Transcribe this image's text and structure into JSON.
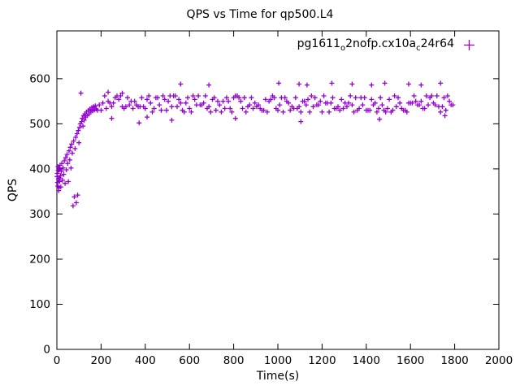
{
  "chart_data": {
    "type": "scatter",
    "title": "QPS vs Time for qp500.L4",
    "xlabel": "Time(s)",
    "ylabel": "QPS",
    "xlim": [
      0,
      2000
    ],
    "ylim": [
      0,
      706
    ],
    "x_ticks": [
      0,
      200,
      400,
      600,
      800,
      1000,
      1200,
      1400,
      1600,
      1800,
      2000
    ],
    "y_ticks": [
      0,
      100,
      200,
      300,
      400,
      500,
      600
    ],
    "grid": false,
    "legend_position": "top-right-inside",
    "colors": {
      "text": "#000000",
      "background": "#ffffff",
      "border": "#000000"
    },
    "series": [
      {
        "name": "pg1611_o2nofp.cx10a_c24r64",
        "name_parts": {
          "prefix": "pg1611",
          "sub1": "o",
          "mid": "2nofp.cx10a",
          "sub2": "c",
          "suffix": "24r64"
        },
        "marker": "plus",
        "color": "#9400d3",
        "points": [
          [
            1,
            383
          ],
          [
            2,
            390
          ],
          [
            3,
            370
          ],
          [
            4,
            362
          ],
          [
            5,
            405
          ],
          [
            6,
            397
          ],
          [
            7,
            378
          ],
          [
            8,
            352
          ],
          [
            9,
            358
          ],
          [
            10,
            398
          ],
          [
            11,
            402
          ],
          [
            12,
            372
          ],
          [
            13,
            380
          ],
          [
            14,
            408
          ],
          [
            16,
            385
          ],
          [
            18,
            360
          ],
          [
            20,
            395
          ],
          [
            22,
            412
          ],
          [
            25,
            375
          ],
          [
            28,
            402
          ],
          [
            31,
            388
          ],
          [
            34,
            418
          ],
          [
            37,
            368
          ],
          [
            40,
            425
          ],
          [
            43,
            398
          ],
          [
            46,
            432
          ],
          [
            49,
            412
          ],
          [
            52,
            372
          ],
          [
            55,
            440
          ],
          [
            58,
            420
          ],
          [
            61,
            448
          ],
          [
            64,
            402
          ],
          [
            67,
            455
          ],
          [
            70,
            435
          ],
          [
            73,
            318
          ],
          [
            76,
            462
          ],
          [
            79,
            338
          ],
          [
            82,
            445
          ],
          [
            85,
            470
          ],
          [
            88,
            325
          ],
          [
            91,
            478
          ],
          [
            94,
            342
          ],
          [
            97,
            485
          ],
          [
            100,
            458
          ],
          [
            103,
            492
          ],
          [
            106,
            500
          ],
          [
            109,
            568
          ],
          [
            112,
            505
          ],
          [
            115,
            512
          ],
          [
            118,
            495
          ],
          [
            121,
            518
          ],
          [
            124,
            508
          ],
          [
            127,
            522
          ],
          [
            130,
            515
          ],
          [
            134,
            526
          ],
          [
            138,
            518
          ],
          [
            142,
            530
          ],
          [
            146,
            522
          ],
          [
            150,
            533
          ],
          [
            154,
            526
          ],
          [
            158,
            536
          ],
          [
            162,
            529
          ],
          [
            166,
            538
          ],
          [
            170,
            531
          ],
          [
            174,
            540
          ],
          [
            178,
            533
          ],
          [
            184,
            530
          ],
          [
            192,
            542
          ],
          [
            200,
            530
          ],
          [
            208,
            546
          ],
          [
            216,
            562
          ],
          [
            224,
            534
          ],
          [
            232,
            550
          ],
          [
            240,
            546
          ],
          [
            248,
            538
          ],
          [
            256,
            546
          ],
          [
            264,
            558
          ],
          [
            272,
            562
          ],
          [
            280,
            554
          ],
          [
            288,
            562
          ],
          [
            296,
            538
          ],
          [
            304,
            534
          ],
          [
            312,
            538
          ],
          [
            320,
            558
          ],
          [
            328,
            542
          ],
          [
            336,
            550
          ],
          [
            344,
            534
          ],
          [
            352,
            550
          ],
          [
            360,
            542
          ],
          [
            368,
            538
          ],
          [
            376,
            538
          ],
          [
            384,
            558
          ],
          [
            392,
            538
          ],
          [
            400,
            534
          ],
          [
            408,
            554
          ],
          [
            416,
            562
          ],
          [
            424,
            546
          ],
          [
            432,
            526
          ],
          [
            440,
            534
          ],
          [
            448,
            558
          ],
          [
            456,
            558
          ],
          [
            464,
            542
          ],
          [
            472,
            530
          ],
          [
            480,
            562
          ],
          [
            488,
            554
          ],
          [
            496,
            530
          ],
          [
            504,
            550
          ],
          [
            512,
            562
          ],
          [
            520,
            538
          ],
          [
            528,
            562
          ],
          [
            536,
            562
          ],
          [
            544,
            538
          ],
          [
            552,
            554
          ],
          [
            560,
            546
          ],
          [
            568,
            530
          ],
          [
            576,
            526
          ],
          [
            584,
            546
          ],
          [
            592,
            558
          ],
          [
            600,
            534
          ],
          [
            608,
            526
          ],
          [
            616,
            562
          ],
          [
            624,
            554
          ],
          [
            632,
            542
          ],
          [
            640,
            562
          ],
          [
            648,
            542
          ],
          [
            656,
            542
          ],
          [
            664,
            546
          ],
          [
            672,
            562
          ],
          [
            680,
            534
          ],
          [
            688,
            538
          ],
          [
            696,
            526
          ],
          [
            704,
            554
          ],
          [
            712,
            558
          ],
          [
            720,
            530
          ],
          [
            728,
            550
          ],
          [
            736,
            542
          ],
          [
            744,
            526
          ],
          [
            752,
            550
          ],
          [
            760,
            534
          ],
          [
            768,
            558
          ],
          [
            776,
            550
          ],
          [
            784,
            534
          ],
          [
            792,
            526
          ],
          [
            800,
            558
          ],
          [
            808,
            562
          ],
          [
            816,
            562
          ],
          [
            824,
            558
          ],
          [
            832,
            550
          ],
          [
            840,
            534
          ],
          [
            848,
            558
          ],
          [
            856,
            526
          ],
          [
            864,
            538
          ],
          [
            872,
            542
          ],
          [
            880,
            558
          ],
          [
            888,
            534
          ],
          [
            896,
            546
          ],
          [
            904,
            538
          ],
          [
            912,
            542
          ],
          [
            920,
            534
          ],
          [
            928,
            530
          ],
          [
            936,
            530
          ],
          [
            944,
            554
          ],
          [
            952,
            526
          ],
          [
            960,
            550
          ],
          [
            968,
            554
          ],
          [
            976,
            562
          ],
          [
            984,
            558
          ],
          [
            992,
            534
          ],
          [
            1000,
            530
          ],
          [
            1008,
            542
          ],
          [
            1016,
            558
          ],
          [
            1024,
            526
          ],
          [
            1032,
            558
          ],
          [
            1040,
            550
          ],
          [
            1048,
            546
          ],
          [
            1056,
            530
          ],
          [
            1064,
            538
          ],
          [
            1072,
            534
          ],
          [
            1080,
            558
          ],
          [
            1088,
            534
          ],
          [
            1096,
            538
          ],
          [
            1104,
            526
          ],
          [
            1112,
            550
          ],
          [
            1120,
            550
          ],
          [
            1128,
            542
          ],
          [
            1136,
            554
          ],
          [
            1144,
            526
          ],
          [
            1152,
            562
          ],
          [
            1160,
            538
          ],
          [
            1168,
            558
          ],
          [
            1176,
            542
          ],
          [
            1184,
            542
          ],
          [
            1192,
            550
          ],
          [
            1200,
            526
          ],
          [
            1208,
            562
          ],
          [
            1216,
            546
          ],
          [
            1224,
            546
          ],
          [
            1232,
            526
          ],
          [
            1240,
            546
          ],
          [
            1248,
            558
          ],
          [
            1256,
            534
          ],
          [
            1264,
            534
          ],
          [
            1272,
            538
          ],
          [
            1280,
            530
          ],
          [
            1288,
            554
          ],
          [
            1296,
            534
          ],
          [
            1304,
            546
          ],
          [
            1312,
            538
          ],
          [
            1320,
            546
          ],
          [
            1328,
            562
          ],
          [
            1336,
            542
          ],
          [
            1344,
            526
          ],
          [
            1352,
            558
          ],
          [
            1360,
            530
          ],
          [
            1368,
            534
          ],
          [
            1376,
            558
          ],
          [
            1384,
            542
          ],
          [
            1392,
            558
          ],
          [
            1400,
            530
          ],
          [
            1408,
            530
          ],
          [
            1416,
            530
          ],
          [
            1424,
            554
          ],
          [
            1432,
            542
          ],
          [
            1440,
            546
          ],
          [
            1448,
            526
          ],
          [
            1456,
            534
          ],
          [
            1464,
            558
          ],
          [
            1472,
            542
          ],
          [
            1480,
            530
          ],
          [
            1488,
            526
          ],
          [
            1496,
            534
          ],
          [
            1504,
            554
          ],
          [
            1512,
            526
          ],
          [
            1520,
            530
          ],
          [
            1528,
            562
          ],
          [
            1536,
            538
          ],
          [
            1544,
            558
          ],
          [
            1552,
            546
          ],
          [
            1560,
            534
          ],
          [
            1568,
            530
          ],
          [
            1576,
            530
          ],
          [
            1584,
            526
          ],
          [
            1592,
            546
          ],
          [
            1600,
            546
          ],
          [
            1608,
            546
          ],
          [
            1616,
            562
          ],
          [
            1624,
            550
          ],
          [
            1632,
            542
          ],
          [
            1640,
            542
          ],
          [
            1648,
            550
          ],
          [
            1656,
            534
          ],
          [
            1664,
            534
          ],
          [
            1672,
            562
          ],
          [
            1680,
            542
          ],
          [
            1688,
            558
          ],
          [
            1696,
            562
          ],
          [
            1704,
            546
          ],
          [
            1712,
            542
          ],
          [
            1720,
            562
          ],
          [
            1728,
            538
          ],
          [
            1736,
            526
          ],
          [
            1744,
            538
          ],
          [
            1752,
            558
          ],
          [
            1760,
            530
          ],
          [
            1768,
            562
          ],
          [
            1776,
            550
          ],
          [
            1784,
            542
          ],
          [
            1792,
            542
          ],
          [
            232,
            570
          ],
          [
            296,
            568
          ],
          [
            560,
            588
          ],
          [
            688,
            586
          ],
          [
            1004,
            590
          ],
          [
            1096,
            588
          ],
          [
            1132,
            586
          ],
          [
            1244,
            590
          ],
          [
            1336,
            588
          ],
          [
            1424,
            586
          ],
          [
            1484,
            590
          ],
          [
            1592,
            588
          ],
          [
            1648,
            586
          ],
          [
            1736,
            590
          ],
          [
            248,
            512
          ],
          [
            372,
            502
          ],
          [
            408,
            515
          ],
          [
            520,
            508
          ],
          [
            808,
            512
          ],
          [
            1104,
            505
          ],
          [
            1460,
            510
          ],
          [
            1756,
            518
          ]
        ]
      }
    ]
  }
}
